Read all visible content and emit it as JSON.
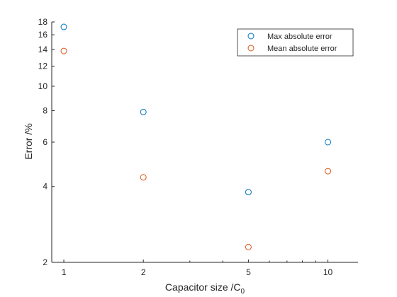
{
  "chart_data": {
    "type": "scatter",
    "xscale": "log",
    "yscale": "log",
    "xlim": [
      0.9,
      13
    ],
    "ylim": [
      2,
      18
    ],
    "x_ticks": [
      1,
      2,
      5,
      10
    ],
    "x_tick_labels": [
      "1",
      "2",
      "5",
      "10"
    ],
    "y_ticks": [
      2,
      4,
      6,
      8,
      10,
      12,
      14,
      16,
      18
    ],
    "y_tick_labels": [
      "2",
      "4",
      "6",
      "8",
      "10",
      "12",
      "14",
      "16",
      "18"
    ],
    "xlabel": "Capacitor size /C",
    "xlabel_subscript": "0",
    "ylabel": "Error /%",
    "legend_position": "top-right",
    "grid": false,
    "series": [
      {
        "name": "Max absolute error",
        "color": "#0072BD",
        "marker": "circle-open",
        "x": [
          1,
          2,
          5,
          10
        ],
        "y": [
          17.2,
          7.9,
          3.8,
          6.0
        ]
      },
      {
        "name": "Mean absolute error",
        "color": "#D95319",
        "marker": "circle-open",
        "x": [
          1,
          2,
          5,
          10
        ],
        "y": [
          13.8,
          4.35,
          2.3,
          4.6
        ]
      }
    ]
  }
}
